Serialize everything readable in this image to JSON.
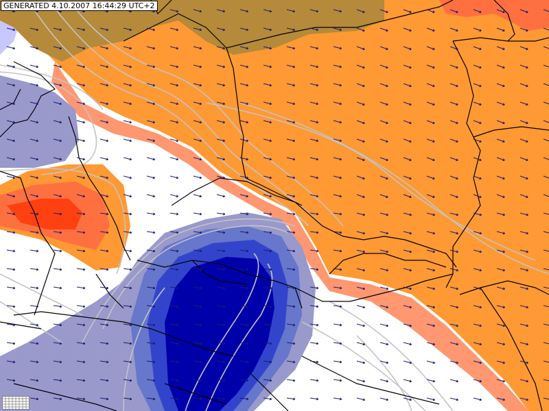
{
  "header": {
    "generated_label": "GENERATED 4.10.2007 16:44:29 UTC+2"
  },
  "palette": {
    "very_warm": "#ff4010",
    "warm": "#ff7040",
    "orange": "#ff9933",
    "light_orange": "#ff8c60",
    "olive": "#b58a3a",
    "neutral": "#ffffff",
    "cool": "#9999cc",
    "cold": "#3344cc",
    "very_cold": "#0000aa",
    "isoline": "#c4c4c4",
    "border": "#000000",
    "wind_arrow": "#1a1a6e"
  },
  "icons": [
    "grid-legend-icon",
    "wind-arrow-icon"
  ]
}
